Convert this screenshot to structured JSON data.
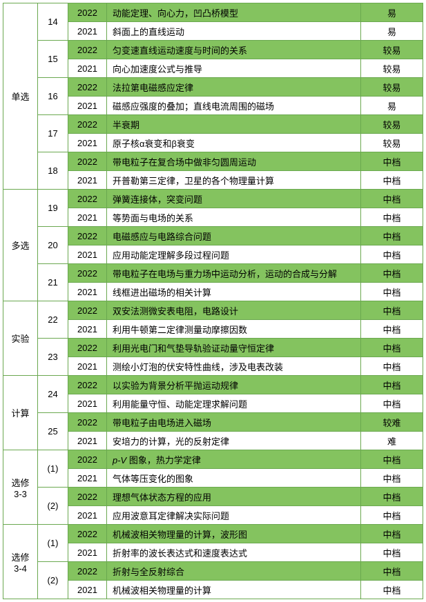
{
  "colors": {
    "border": "#6aa84f",
    "highlight": "#84c35f",
    "bg": "#ffffff"
  },
  "sections": [
    {
      "name": "单选",
      "groups": [
        {
          "num": "14",
          "rows": [
            {
              "year": "2022",
              "topic": "动能定理、向心力，凹凸桥模型",
              "diff": "易",
              "hl": true
            },
            {
              "year": "2021",
              "topic": "斜面上的直线运动",
              "diff": "易",
              "hl": false
            }
          ]
        },
        {
          "num": "15",
          "rows": [
            {
              "year": "2022",
              "topic": "匀变速直线运动速度与时间的关系",
              "diff": "较易",
              "hl": true
            },
            {
              "year": "2021",
              "topic": "向心加速度公式与推导",
              "diff": "较易",
              "hl": false
            }
          ]
        },
        {
          "num": "16",
          "rows": [
            {
              "year": "2022",
              "topic": "法拉第电磁感应定律",
              "diff": "较易",
              "hl": true
            },
            {
              "year": "2021",
              "topic": "磁感应强度的叠加；直线电流周围的磁场",
              "diff": "易",
              "hl": false
            }
          ]
        },
        {
          "num": "17",
          "rows": [
            {
              "year": "2022",
              "topic": "半衰期",
              "diff": "较易",
              "hl": true
            },
            {
              "year": "2021",
              "topic": "原子核α衰变和β衰变",
              "diff": "较易",
              "hl": false
            }
          ]
        },
        {
          "num": "18",
          "rows": [
            {
              "year": "2022",
              "topic": "带电粒子在复合场中做非匀圆周运动",
              "diff": "中档",
              "hl": true
            },
            {
              "year": "2021",
              "topic": "开普勒第三定律，卫星的各个物理量计算",
              "diff": "中档",
              "hl": false
            }
          ]
        }
      ]
    },
    {
      "name": "多选",
      "groups": [
        {
          "num": "19",
          "rows": [
            {
              "year": "2022",
              "topic": "弹簧连接体，突变问题",
              "diff": "中档",
              "hl": true
            },
            {
              "year": "2021",
              "topic": "等势面与电场的关系",
              "diff": "中档",
              "hl": false
            }
          ]
        },
        {
          "num": "20",
          "rows": [
            {
              "year": "2022",
              "topic": "电磁感应与电路综合问题",
              "diff": "中档",
              "hl": true
            },
            {
              "year": "2021",
              "topic": "应用动能定理解多段过程问题",
              "diff": "中档",
              "hl": false
            }
          ]
        },
        {
          "num": "21",
          "rows": [
            {
              "year": "2022",
              "topic": "带电粒子在电场与重力场中运动分析，运动的合成与分解",
              "diff": "中档",
              "hl": true
            },
            {
              "year": "2021",
              "topic": "线框进出磁场的相关计算",
              "diff": "中档",
              "hl": false
            }
          ]
        }
      ]
    },
    {
      "name": "实验",
      "groups": [
        {
          "num": "22",
          "rows": [
            {
              "year": "2022",
              "topic": "双安法测微安表电阻，电路设计",
              "diff": "中档",
              "hl": true
            },
            {
              "year": "2021",
              "topic": "利用牛顿第二定律测量动摩擦因数",
              "diff": "中档",
              "hl": false
            }
          ]
        },
        {
          "num": "23",
          "rows": [
            {
              "year": "2022",
              "topic": "利用光电门和气垫导轨验证动量守恒定律",
              "diff": "中档",
              "hl": true
            },
            {
              "year": "2021",
              "topic": "测绘小灯泡的伏安特性曲线，涉及电表改装",
              "diff": "中档",
              "hl": false
            }
          ]
        }
      ]
    },
    {
      "name": "计算",
      "groups": [
        {
          "num": "24",
          "rows": [
            {
              "year": "2022",
              "topic": "以实验为背景分析平抛运动规律",
              "diff": "中档",
              "hl": true
            },
            {
              "year": "2021",
              "topic": "利用能量守恒、动能定理求解问题",
              "diff": "中档",
              "hl": false
            }
          ]
        },
        {
          "num": "25",
          "rows": [
            {
              "year": "2022",
              "topic": "带电粒子由电场进入磁场",
              "diff": "较难",
              "hl": true
            },
            {
              "year": "2021",
              "topic": "安培力的计算，光的反射定律",
              "diff": "难",
              "hl": false
            }
          ]
        }
      ]
    },
    {
      "name": "选修\n3-3",
      "groups": [
        {
          "num": "(1)",
          "rows": [
            {
              "year": "2022",
              "topic": "p-V 图象，热力学定律",
              "diff": "中档",
              "hl": true,
              "italic": true
            },
            {
              "year": "2021",
              "topic": "气体等压变化的图象",
              "diff": "中档",
              "hl": false
            }
          ]
        },
        {
          "num": "(2)",
          "rows": [
            {
              "year": "2022",
              "topic": "理想气体状态方程的应用",
              "diff": "中档",
              "hl": true
            },
            {
              "year": "2021",
              "topic": "应用波意耳定律解决实际问题",
              "diff": "中档",
              "hl": false
            }
          ]
        }
      ]
    },
    {
      "name": "选修\n3-4",
      "groups": [
        {
          "num": "(1)",
          "rows": [
            {
              "year": "2022",
              "topic": "机械波相关物理量的计算，波形图",
              "diff": "中档",
              "hl": true
            },
            {
              "year": "2021",
              "topic": "折射率的波长表达式和速度表达式",
              "diff": "中档",
              "hl": false
            }
          ]
        },
        {
          "num": "(2)",
          "rows": [
            {
              "year": "2022",
              "topic": "折射与全反射综合",
              "diff": "中档",
              "hl": true
            },
            {
              "year": "2021",
              "topic": "机械波相关物理量的计算",
              "diff": "中档",
              "hl": false
            }
          ]
        }
      ]
    }
  ]
}
